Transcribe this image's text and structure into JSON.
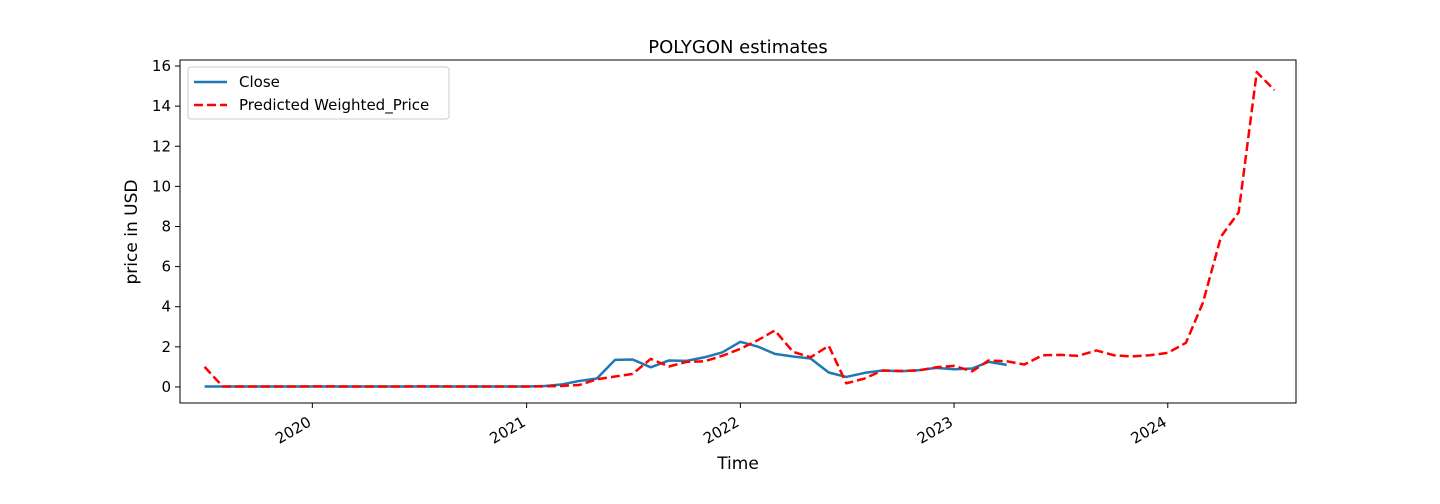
{
  "chart_data": {
    "type": "line",
    "title": "POLYGON estimates",
    "xlabel": "Time",
    "ylabel": "price in USD",
    "x_axis": {
      "type": "date",
      "range": [
        "2019-05-20",
        "2024-08-07"
      ],
      "ticks": [
        "2020-01-01",
        "2021-01-01",
        "2022-01-01",
        "2023-01-01",
        "2024-01-01"
      ],
      "tick_labels": [
        "2020",
        "2021",
        "2022",
        "2023",
        "2024"
      ]
    },
    "y_axis": {
      "range": [
        -0.8,
        16.3
      ],
      "ticks": [
        0,
        2,
        4,
        6,
        8,
        10,
        12,
        14,
        16
      ],
      "tick_labels": [
        "0",
        "2",
        "4",
        "6",
        "8",
        "10",
        "12",
        "14",
        "16"
      ]
    },
    "grid": false,
    "legend": {
      "position": "top-left"
    },
    "series": [
      {
        "name": "Close",
        "color": "#1f77b4",
        "style": "solid",
        "points": [
          [
            "2019-07-01",
            0.02
          ],
          [
            "2019-08-01",
            0.02
          ],
          [
            "2019-09-01",
            0.02
          ],
          [
            "2019-10-01",
            0.02
          ],
          [
            "2019-11-01",
            0.02
          ],
          [
            "2019-12-01",
            0.02
          ],
          [
            "2020-01-01",
            0.02
          ],
          [
            "2020-02-01",
            0.02
          ],
          [
            "2020-03-01",
            0.02
          ],
          [
            "2020-04-01",
            0.02
          ],
          [
            "2020-05-01",
            0.02
          ],
          [
            "2020-06-01",
            0.02
          ],
          [
            "2020-07-01",
            0.02
          ],
          [
            "2020-08-01",
            0.02
          ],
          [
            "2020-09-01",
            0.02
          ],
          [
            "2020-10-01",
            0.02
          ],
          [
            "2020-11-01",
            0.02
          ],
          [
            "2020-12-01",
            0.02
          ],
          [
            "2021-01-01",
            0.02
          ],
          [
            "2021-02-01",
            0.05
          ],
          [
            "2021-03-01",
            0.12
          ],
          [
            "2021-04-01",
            0.3
          ],
          [
            "2021-05-01",
            0.42
          ],
          [
            "2021-06-01",
            1.35
          ],
          [
            "2021-07-01",
            1.37
          ],
          [
            "2021-08-01",
            0.98
          ],
          [
            "2021-09-01",
            1.32
          ],
          [
            "2021-10-01",
            1.3
          ],
          [
            "2021-11-01",
            1.48
          ],
          [
            "2021-12-01",
            1.72
          ],
          [
            "2022-01-01",
            2.25
          ],
          [
            "2022-02-01",
            2.0
          ],
          [
            "2022-03-01",
            1.65
          ],
          [
            "2022-04-01",
            1.52
          ],
          [
            "2022-05-01",
            1.42
          ],
          [
            "2022-06-01",
            0.72
          ],
          [
            "2022-07-01",
            0.5
          ],
          [
            "2022-08-01",
            0.7
          ],
          [
            "2022-09-01",
            0.82
          ],
          [
            "2022-10-01",
            0.78
          ],
          [
            "2022-11-01",
            0.83
          ],
          [
            "2022-12-01",
            0.95
          ],
          [
            "2023-01-01",
            0.88
          ],
          [
            "2023-02-01",
            0.92
          ],
          [
            "2023-03-01",
            1.25
          ],
          [
            "2023-04-01",
            1.1
          ]
        ]
      },
      {
        "name": "Predicted Weighted_Price",
        "color": "#ff0000",
        "style": "dashed",
        "points": [
          [
            "2019-07-01",
            1.0
          ],
          [
            "2019-08-01",
            0.02
          ],
          [
            "2019-09-01",
            0.02
          ],
          [
            "2019-10-01",
            0.02
          ],
          [
            "2019-11-01",
            0.02
          ],
          [
            "2019-12-01",
            0.02
          ],
          [
            "2020-01-01",
            0.03
          ],
          [
            "2020-02-01",
            0.03
          ],
          [
            "2020-03-01",
            0.02
          ],
          [
            "2020-04-01",
            0.02
          ],
          [
            "2020-05-01",
            0.02
          ],
          [
            "2020-06-01",
            0.02
          ],
          [
            "2020-07-01",
            0.03
          ],
          [
            "2020-08-01",
            0.03
          ],
          [
            "2020-09-01",
            0.02
          ],
          [
            "2020-10-01",
            0.02
          ],
          [
            "2020-11-01",
            0.02
          ],
          [
            "2020-12-01",
            0.02
          ],
          [
            "2021-01-01",
            0.02
          ],
          [
            "2021-02-01",
            0.03
          ],
          [
            "2021-03-01",
            0.05
          ],
          [
            "2021-04-01",
            0.1
          ],
          [
            "2021-05-01",
            0.38
          ],
          [
            "2021-06-01",
            0.52
          ],
          [
            "2021-07-01",
            0.65
          ],
          [
            "2021-08-01",
            1.4
          ],
          [
            "2021-09-01",
            1.02
          ],
          [
            "2021-10-01",
            1.25
          ],
          [
            "2021-11-01",
            1.28
          ],
          [
            "2021-12-01",
            1.55
          ],
          [
            "2022-01-01",
            1.9
          ],
          [
            "2022-02-01",
            2.35
          ],
          [
            "2022-03-01",
            2.82
          ],
          [
            "2022-04-01",
            1.75
          ],
          [
            "2022-05-01",
            1.48
          ],
          [
            "2022-06-01",
            2.05
          ],
          [
            "2022-07-01",
            0.18
          ],
          [
            "2022-08-01",
            0.42
          ],
          [
            "2022-09-01",
            0.82
          ],
          [
            "2022-10-01",
            0.8
          ],
          [
            "2022-11-01",
            0.82
          ],
          [
            "2022-12-01",
            0.98
          ],
          [
            "2023-01-01",
            1.05
          ],
          [
            "2023-02-01",
            0.78
          ],
          [
            "2023-03-01",
            1.32
          ],
          [
            "2023-04-01",
            1.28
          ],
          [
            "2023-05-01",
            1.12
          ],
          [
            "2023-06-01",
            1.58
          ],
          [
            "2023-07-01",
            1.6
          ],
          [
            "2023-08-01",
            1.55
          ],
          [
            "2023-09-01",
            1.82
          ],
          [
            "2023-10-01",
            1.58
          ],
          [
            "2023-11-01",
            1.52
          ],
          [
            "2023-12-01",
            1.58
          ],
          [
            "2024-01-01",
            1.7
          ],
          [
            "2024-02-01",
            2.2
          ],
          [
            "2024-03-01",
            4.2
          ],
          [
            "2024-04-01",
            7.5
          ],
          [
            "2024-05-01",
            8.7
          ],
          [
            "2024-06-01",
            15.7
          ],
          [
            "2024-07-01",
            14.8
          ]
        ]
      }
    ]
  }
}
